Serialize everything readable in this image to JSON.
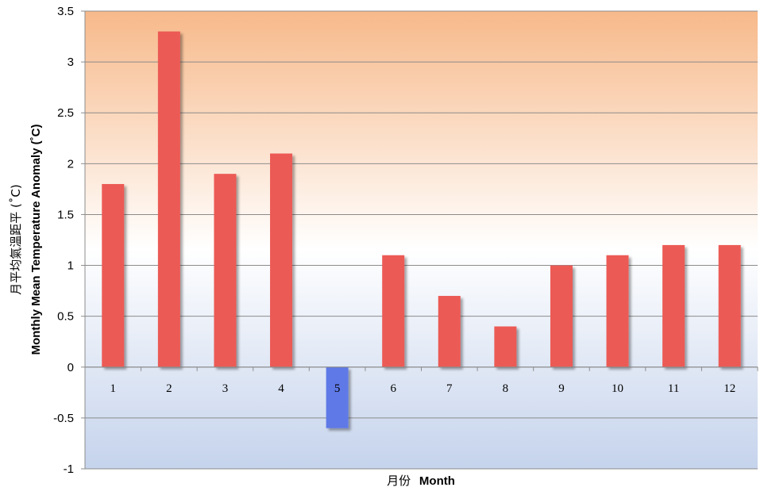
{
  "chart_data": {
    "type": "bar",
    "categories": [
      "1",
      "2",
      "3",
      "4",
      "5",
      "6",
      "7",
      "8",
      "9",
      "10",
      "11",
      "12"
    ],
    "values": [
      1.8,
      3.3,
      1.9,
      2.1,
      -0.6,
      1.1,
      0.7,
      0.4,
      1.0,
      1.1,
      1.2,
      1.2
    ],
    "ylim": [
      -1,
      3.5
    ],
    "yticks": [
      "-1",
      "-0.5",
      "0",
      "0.5",
      "1",
      "1.5",
      "2",
      "2.5",
      "3",
      "3.5"
    ],
    "xlabel_zh": "月份",
    "xlabel_en": "Month",
    "ylabel_zh": "月平均氣溫距平 (˚C)",
    "ylabel_en": "Monthly Mean Temperature Anomaly (˚C)",
    "grid": true,
    "legend": "none",
    "colors": {
      "positive": "#ec5a55",
      "negative": "#5f79e6",
      "background_top": "#f7b98a",
      "background_mid": "#ffffff",
      "background_bottom": "#c5d3ec",
      "gridline": "#8c8c8c"
    }
  }
}
